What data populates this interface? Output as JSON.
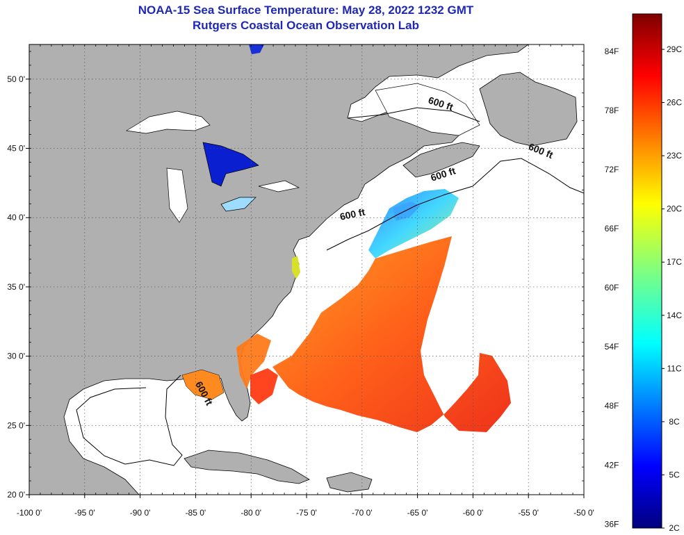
{
  "title": {
    "line1": "NOAA-15 Sea Surface Temperature:  May 28, 2022 1232 GMT",
    "line2": "Rutgers Coastal Ocean Observation Lab"
  },
  "axes": {
    "lon_labels": [
      "-100 0'",
      "-95 0'",
      "-90 0'",
      "-85 0'",
      "-80 0'",
      "-75 0'",
      "-70 0'",
      "-65 0'",
      "-60 0'",
      "-55 0'",
      "-50 0'"
    ],
    "lon_values": [
      -100,
      -95,
      -90,
      -85,
      -80,
      -75,
      -70,
      -65,
      -60,
      -55,
      -50
    ],
    "lat_labels": [
      "50 0'",
      "45 0'",
      "40 0'",
      "35 0'",
      "30 0'",
      "25 0'",
      "20 0'"
    ],
    "lat_values": [
      50,
      45,
      40,
      35,
      30,
      25,
      20
    ],
    "lon_range": [
      -100,
      -50
    ],
    "lat_range": [
      20,
      52.5
    ],
    "grid": "dotted"
  },
  "contours": {
    "label": "600 ft",
    "placements": [
      {
        "lon": -63.0,
        "lat": 48.0,
        "angle": 18
      },
      {
        "lon": -54.0,
        "lat": 44.6,
        "angle": 22
      },
      {
        "lon": -62.6,
        "lat": 42.9,
        "angle": -18
      },
      {
        "lon": -70.8,
        "lat": 40.0,
        "angle": -12
      },
      {
        "lon": -84.5,
        "lat": 27.2,
        "angle": 62
      }
    ]
  },
  "colorbar": {
    "fahrenheit_labels": [
      "84F",
      "78F",
      "72F",
      "66F",
      "60F",
      "54F",
      "48F",
      "42F",
      "36F"
    ],
    "fahrenheit_values": [
      84,
      78,
      72,
      66,
      60,
      54,
      48,
      42,
      36
    ],
    "celsius_labels": [
      "29C",
      "26C",
      "23C",
      "20C",
      "17C",
      "14C",
      "11C",
      "8C",
      "5C",
      "2C"
    ],
    "celsius_values": [
      29,
      26,
      23,
      20,
      17,
      14,
      11,
      8,
      5,
      2
    ],
    "range_c": [
      2,
      31
    ],
    "colors": [
      "#00007f",
      "#0000ff",
      "#007fff",
      "#00ffff",
      "#7fff7f",
      "#ffff00",
      "#ff7f00",
      "#ff0000",
      "#7f0000"
    ]
  },
  "colors": {
    "land": "#b0b0b0",
    "ocean": "#ffffff",
    "coastline": "#000000",
    "title": "#1e28b4"
  }
}
